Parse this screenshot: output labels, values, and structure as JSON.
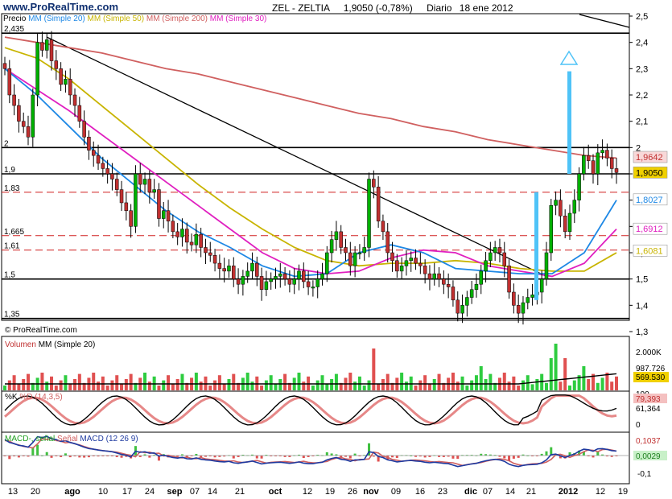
{
  "header": {
    "brand": "www.ProRealTime.com",
    "title": "ZEL - ZELTIA",
    "last": "1,9050 (-0,78%)",
    "period": "Diario",
    "date": "18 ene 2012"
  },
  "legend": {
    "price": "Precio",
    "mm20": "MM (Simple 20)",
    "mm50": "MM (Simple 50)",
    "mm200": "MM (Simple 200)",
    "mm30": "MM (Simple 30)"
  },
  "colors": {
    "mm20": "#1e88e5",
    "mm50": "#c8b400",
    "mm200": "#d06060",
    "mm30": "#e020c0",
    "up": "#00b000",
    "down": "#c03030",
    "arrow": "#4fc3f7"
  },
  "footer_mark": "© ProRealTime.com",
  "right_axis": [
    "2,5",
    "2,4",
    "2,3",
    "2,2",
    "2,1",
    "2",
    "1,9",
    "1,8",
    "1,7",
    "1,6",
    "1,5",
    "1,4",
    "1,3"
  ],
  "level_labels": [
    "2,435",
    "2",
    "1,9",
    "1,83",
    "1,665",
    "1,61",
    "1,5",
    "1,35"
  ],
  "value_badges": {
    "mm200": "1,9642",
    "last": "1,9050",
    "mm20": "1,8027",
    "mm30": "1,6912",
    "mm50": "1,6081"
  },
  "volume": {
    "title": "Volumen",
    "mm": "MM (Simple 20)",
    "axis_top": "2.000K",
    "mm_value": "987.726",
    "last_value": "569.530"
  },
  "stoch": {
    "k_label": "%K",
    "d_label": "%D (14,3,5)",
    "axis_top": "100",
    "d_value": "79,393",
    "k_value": "61,364",
    "axis_bottom": "0"
  },
  "macd": {
    "title1": "MACD-, señal",
    "title2": "Señal",
    "title3": "MACD (12 26 9)",
    "macd_value": "0,1037",
    "signal_value": "0,0029",
    "axis_low": "-0,1"
  },
  "x_axis": [
    "13",
    "20",
    "ago",
    "10",
    "17",
    "24",
    "sep",
    "07",
    "14",
    "21",
    "oct",
    "12",
    "19",
    "26",
    "nov",
    "09",
    "16",
    "23",
    "dic",
    "07",
    "14",
    "21",
    "2012",
    "12",
    "19"
  ],
  "chart_data": {
    "type": "candlestick",
    "title": "ZEL - ZELTIA",
    "ylim": [
      1.3,
      2.5
    ],
    "yticks": [
      1.3,
      1.4,
      1.5,
      1.6,
      1.7,
      1.8,
      1.9,
      2.0,
      2.1,
      2.2,
      2.3,
      2.4,
      2.5
    ],
    "horizontal_levels": [
      2.435,
      2.0,
      1.9,
      1.5,
      1.35
    ],
    "dashed_levels": [
      1.83,
      1.665,
      1.61
    ],
    "trendline": {
      "from": [
        "20 jul",
        2.42
      ],
      "to": [
        "28 dic",
        1.51
      ]
    },
    "close": [
      2.3,
      2.2,
      2.16,
      2.1,
      2.08,
      2.04,
      2.2,
      2.4,
      2.37,
      2.41,
      2.33,
      2.3,
      2.24,
      2.26,
      2.2,
      2.16,
      2.1,
      2.04,
      1.99,
      1.97,
      1.94,
      1.92,
      1.9,
      1.88,
      1.84,
      1.79,
      1.76,
      1.7,
      1.9,
      1.86,
      1.88,
      1.83,
      1.84,
      1.73,
      1.76,
      1.72,
      1.68,
      1.66,
      1.69,
      1.64,
      1.63,
      1.67,
      1.62,
      1.6,
      1.59,
      1.56,
      1.54,
      1.53,
      1.55,
      1.5,
      1.48,
      1.51,
      1.53,
      1.56,
      1.51,
      1.46,
      1.49,
      1.5,
      1.51,
      1.52,
      1.5,
      1.48,
      1.5,
      1.53,
      1.49,
      1.47,
      1.47,
      1.5,
      1.52,
      1.6,
      1.65,
      1.68,
      1.62,
      1.6,
      1.55,
      1.6,
      1.6,
      1.62,
      1.88,
      1.85,
      1.72,
      1.68,
      1.6,
      1.57,
      1.53,
      1.55,
      1.57,
      1.58,
      1.56,
      1.55,
      1.52,
      1.5,
      1.52,
      1.5,
      1.48,
      1.47,
      1.42,
      1.37,
      1.4,
      1.43,
      1.46,
      1.48,
      1.53,
      1.57,
      1.6,
      1.62,
      1.6,
      1.55,
      1.45,
      1.4,
      1.37,
      1.41,
      1.43,
      1.44,
      1.45,
      1.5,
      1.6,
      1.78,
      1.8,
      1.74,
      1.68,
      1.75,
      1.8,
      1.9,
      1.97,
      1.95,
      1.9,
      1.98,
      1.99,
      1.96,
      1.92,
      1.905
    ],
    "mm200": [
      2.42,
      2.4,
      2.38,
      2.36,
      2.33,
      2.3,
      2.28,
      2.25,
      2.22,
      2.19,
      2.16,
      2.13,
      2.11,
      2.08,
      2.06,
      2.03,
      2.01,
      1.99,
      1.97,
      1.96
    ],
    "mm50": [
      2.38,
      2.34,
      2.26,
      2.16,
      2.06,
      1.96,
      1.86,
      1.77,
      1.69,
      1.62,
      1.57,
      1.55,
      1.56,
      1.56,
      1.57,
      1.56,
      1.54,
      1.53,
      1.53,
      1.6
    ],
    "mm30": [
      2.3,
      2.22,
      2.14,
      2.05,
      1.96,
      1.87,
      1.78,
      1.69,
      1.6,
      1.54,
      1.52,
      1.53,
      1.58,
      1.61,
      1.6,
      1.55,
      1.53,
      1.51,
      1.56,
      1.69
    ],
    "mm20": [
      2.3,
      2.2,
      2.08,
      1.96,
      1.86,
      1.76,
      1.68,
      1.62,
      1.55,
      1.51,
      1.52,
      1.6,
      1.63,
      1.6,
      1.54,
      1.53,
      1.52,
      1.52,
      1.6,
      1.8
    ]
  }
}
